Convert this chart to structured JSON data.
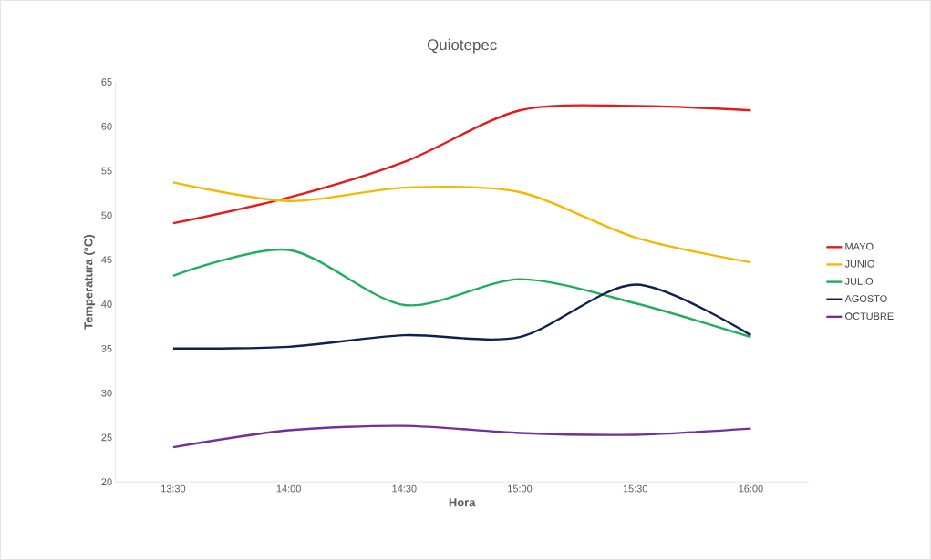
{
  "chart_data": {
    "type": "line",
    "title": "Quiotepec",
    "xlabel": "Hora",
    "ylabel": "Temperatura (°C)",
    "categories": [
      "13:30",
      "14:00",
      "14:30",
      "15:00",
      "15:30",
      "16:00"
    ],
    "series": [
      {
        "name": "MAYO",
        "color": "#e8191b",
        "values": [
          49.1,
          52,
          56,
          61.8,
          62.3,
          61.8
        ]
      },
      {
        "name": "JUNIO",
        "color": "#f5b800",
        "values": [
          53.7,
          51.6,
          53.1,
          52.6,
          47.5,
          44.7
        ]
      },
      {
        "name": "JULIO",
        "color": "#1fae5e",
        "values": [
          43.2,
          46.1,
          39.9,
          42.8,
          40.1,
          36.3
        ]
      },
      {
        "name": "AGOSTO",
        "color": "#0d2150",
        "values": [
          35,
          35.2,
          36.5,
          36.3,
          42.2,
          36.5
        ]
      },
      {
        "name": "OCTUBRE",
        "color": "#7030a0",
        "values": [
          23.9,
          25.8,
          26.3,
          25.5,
          25.3,
          26
        ]
      }
    ],
    "ylim": [
      20,
      65
    ],
    "yticks": [
      20,
      25,
      30,
      35,
      40,
      45,
      50,
      55,
      60,
      65
    ],
    "grid": false,
    "legend": "right",
    "marker": "none",
    "line_style": "solid"
  }
}
